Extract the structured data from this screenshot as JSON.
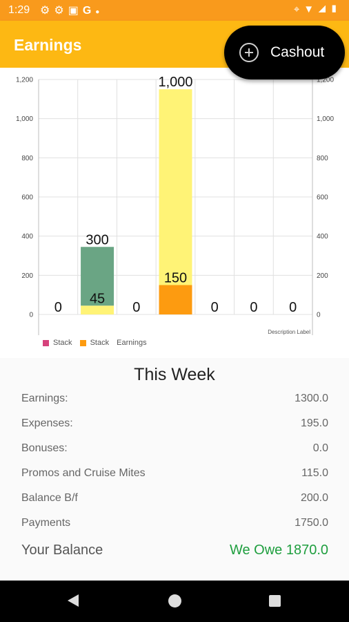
{
  "status_bar": {
    "time": "1:29",
    "left_icons": [
      "settings-icon",
      "settings-icon",
      "image-icon",
      "google-icon",
      "dot-icon"
    ],
    "right_icons": [
      "location-icon",
      "wifi-icon",
      "signal-icon",
      "battery-icon"
    ]
  },
  "app_bar": {
    "title": "Earnings"
  },
  "cashout_button": {
    "label": "Cashout",
    "icon": "add-circle-icon"
  },
  "colors": {
    "status_bar": "#f99a1c",
    "app_bar": "#fdb813",
    "bar_green": "#6aa584",
    "bar_yellow": "#fff376",
    "bar_orange": "#fd9b10",
    "legend_pink": "#d6427c",
    "balance_green": "#1e9e3e"
  },
  "chart_data": {
    "type": "bar",
    "stacked": true,
    "categories": [
      "",
      "",
      "",
      "",
      "",
      "",
      ""
    ],
    "series": [
      {
        "name": "Stack",
        "color": "#d6427c",
        "values": [
          0,
          0,
          0,
          0,
          0,
          0,
          0
        ]
      },
      {
        "name": "Stack",
        "color": "#fd9b10",
        "values": [
          0,
          0,
          0,
          150,
          0,
          0,
          0
        ]
      },
      {
        "name": "",
        "color": "#fff376",
        "values": [
          0,
          45,
          0,
          1000,
          0,
          0,
          0
        ]
      },
      {
        "name": "",
        "color": "#6aa584",
        "values": [
          0,
          300,
          0,
          0,
          0,
          0,
          0
        ]
      }
    ],
    "bar_labels": [
      {
        "bar": 0,
        "text": "0",
        "at": 0
      },
      {
        "bar": 1,
        "text": "45",
        "at": 45
      },
      {
        "bar": 1,
        "text": "300",
        "at": 345
      },
      {
        "bar": 2,
        "text": "0",
        "at": 0
      },
      {
        "bar": 3,
        "text": "150",
        "at": 150
      },
      {
        "bar": 3,
        "text": "1,000",
        "at": 1150
      },
      {
        "bar": 4,
        "text": "0",
        "at": 0
      },
      {
        "bar": 5,
        "text": "0",
        "at": 0
      },
      {
        "bar": 6,
        "text": "0",
        "at": 0
      }
    ],
    "ylim": [
      0,
      1200
    ],
    "yticks": [
      0,
      200,
      400,
      600,
      800,
      1000,
      1200
    ],
    "ytick_labels": [
      "0",
      "200",
      "400",
      "600",
      "800",
      "1,000",
      "1,200"
    ],
    "legend_title": "Earnings",
    "legend_position": "bottom-left",
    "description_label": "Description Label",
    "grid": true
  },
  "summary": {
    "title": "This Week",
    "rows": [
      {
        "label": "Earnings:",
        "value": "1300.0"
      },
      {
        "label": "Expenses:",
        "value": "195.0"
      },
      {
        "label": "Bonuses:",
        "value": "0.0"
      },
      {
        "label": "Promos and Cruise Mites",
        "value": "115.0"
      },
      {
        "label": "Balance B/f",
        "value": "200.0"
      },
      {
        "label": "Payments",
        "value": "1750.0"
      }
    ],
    "balance": {
      "label": "Your Balance",
      "value": "We Owe 1870.0"
    }
  },
  "nav_bar": {
    "icons": [
      "back-icon",
      "home-icon",
      "recent-apps-icon"
    ]
  }
}
